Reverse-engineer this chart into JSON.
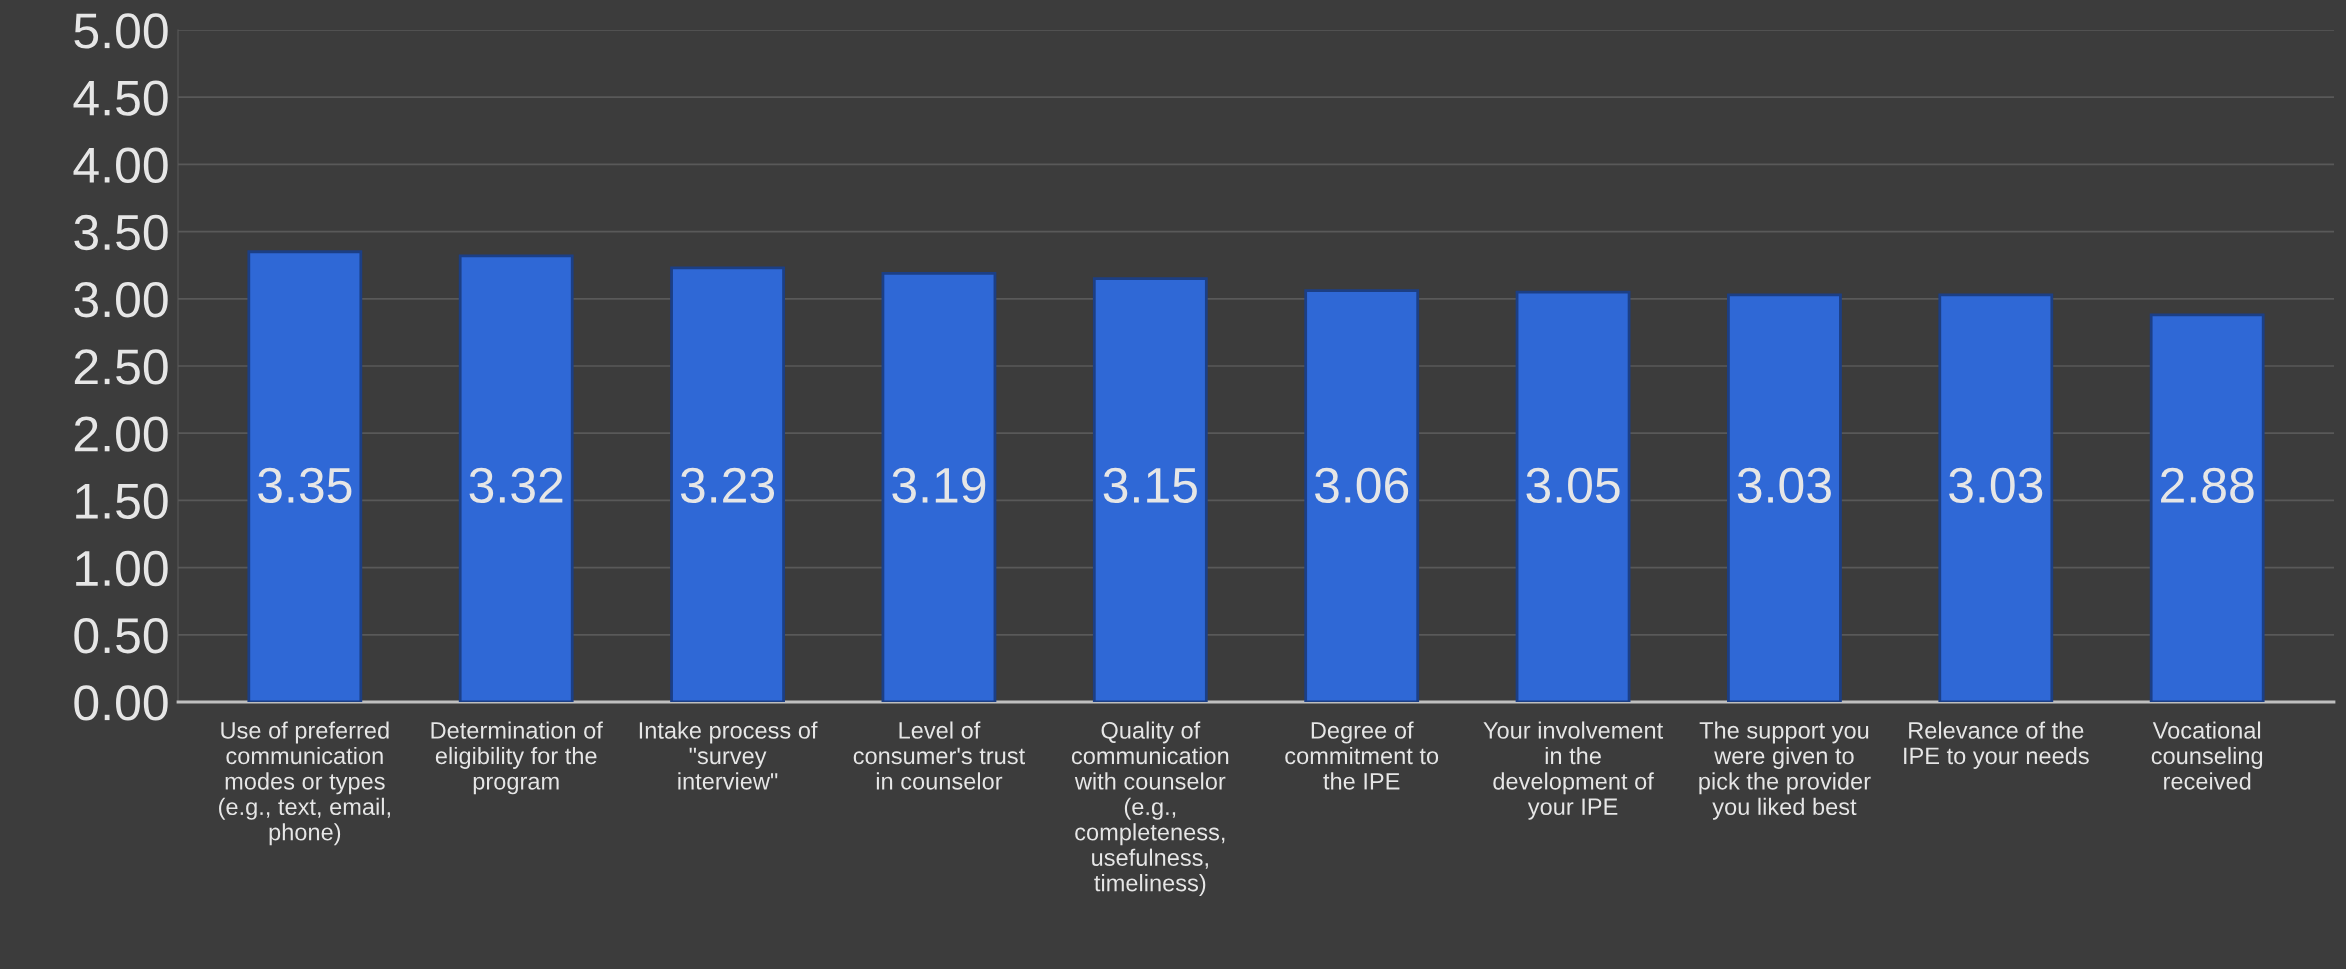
{
  "chart_data": {
    "type": "bar",
    "categories": [
      "Use of preferred\ncommunication\nmodes or types\n(e.g., text, email,\nphone)",
      "Determination of\neligibility for the\nprogram",
      "Intake process of\n\"survey\ninterview\"",
      "Level of\nconsumer's trust\nin counselor",
      "Quality of\ncommunication\nwith counselor\n(e.g.,\ncompleteness,\nusefulness,\ntimeliness)",
      "Degree of\ncommitment to\nthe IPE",
      "Your involvement\nin the\ndevelopment of\nyour IPE",
      "The support you\nwere given to\npick the provider\nyou liked best",
      "Relevance of the\nIPE to your needs",
      "Vocational\ncounseling\nreceived"
    ],
    "values": [
      3.35,
      3.32,
      3.23,
      3.19,
      3.15,
      3.06,
      3.05,
      3.03,
      3.03,
      2.88
    ],
    "color": "#2f68d6",
    "ylim": [
      0,
      5
    ],
    "yticks": [
      {
        "value": 0,
        "label": "0.00"
      },
      {
        "value": 0.5,
        "label": "0.50"
      },
      {
        "value": 1,
        "label": "1.00"
      },
      {
        "value": 1.5,
        "label": "1.50"
      },
      {
        "value": 2,
        "label": "2.00"
      },
      {
        "value": 2.5,
        "label": "2.50"
      },
      {
        "value": 3,
        "label": "3.00"
      },
      {
        "value": 3.5,
        "label": "3.50"
      },
      {
        "value": 4,
        "label": "4.00"
      },
      {
        "value": 4.5,
        "label": "4.50"
      },
      {
        "value": 5,
        "label": "5.00"
      }
    ],
    "grid": "y",
    "data_labels": true
  }
}
